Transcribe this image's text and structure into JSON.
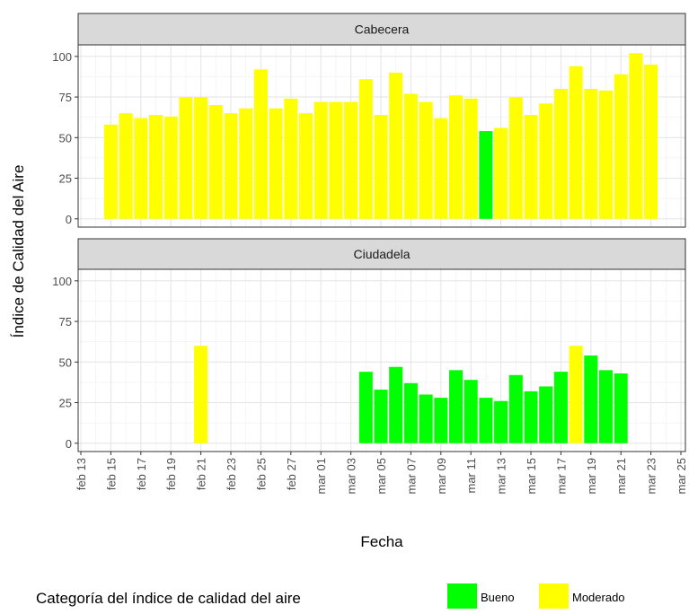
{
  "chart_data": {
    "type": "bar",
    "x_label": "Fecha",
    "y_label": "Índice de Calidad del Aire",
    "legend_title": "Categoría del índice de calidad del aire",
    "categories": [
      "feb 13",
      null,
      "feb 15",
      null,
      "feb 17",
      null,
      "feb 19",
      null,
      "feb 21",
      null,
      "feb 23",
      null,
      "feb 25",
      null,
      "feb 27",
      null,
      "mar 01",
      null,
      "mar 03",
      null,
      "mar 05",
      null,
      "mar 07",
      null,
      "mar 09",
      null,
      "mar 11",
      null,
      "mar 13",
      null,
      "mar 15",
      null,
      "mar 17",
      null,
      "mar 19",
      null,
      "mar 21",
      null,
      "mar 23",
      null,
      "mar 25"
    ],
    "ylim": [
      -5.1,
      107.1
    ],
    "yticks": [
      0,
      25,
      50,
      75,
      100
    ],
    "grid": true,
    "facets": [
      {
        "title": "Cabecera",
        "series": [
          {
            "name": "Bueno",
            "color": "#00ff00",
            "values": [
              null,
              null,
              null,
              null,
              null,
              null,
              null,
              null,
              null,
              null,
              null,
              null,
              null,
              null,
              null,
              null,
              null,
              null,
              null,
              null,
              null,
              null,
              null,
              null,
              null,
              null,
              null,
              54,
              null,
              null,
              null,
              null,
              null,
              null,
              null,
              null,
              null,
              null,
              null,
              null,
              null
            ]
          },
          {
            "name": "Moderado",
            "color": "#ffff00",
            "values": [
              null,
              null,
              58,
              65,
              62,
              64,
              63,
              75,
              75,
              70,
              65,
              68,
              92,
              68,
              74,
              65,
              72,
              72,
              72,
              86,
              64,
              90,
              77,
              72,
              62,
              76,
              74,
              null,
              56,
              75,
              64,
              71,
              80,
              94,
              80,
              79,
              89,
              102,
              95,
              null,
              null
            ]
          }
        ]
      },
      {
        "title": "Ciudadela",
        "series": [
          {
            "name": "Bueno",
            "color": "#00ff00",
            "values": [
              null,
              null,
              null,
              null,
              null,
              null,
              null,
              null,
              null,
              null,
              null,
              null,
              null,
              null,
              null,
              null,
              null,
              null,
              null,
              44,
              33,
              47,
              37,
              30,
              28,
              45,
              39,
              28,
              26,
              42,
              32,
              35,
              44,
              null,
              54,
              45,
              43,
              null,
              null,
              null,
              null
            ]
          },
          {
            "name": "Moderado",
            "color": "#ffff00",
            "values": [
              null,
              null,
              null,
              null,
              null,
              null,
              null,
              null,
              60,
              null,
              null,
              null,
              null,
              null,
              null,
              null,
              null,
              null,
              null,
              null,
              null,
              null,
              null,
              null,
              null,
              null,
              null,
              null,
              null,
              null,
              null,
              null,
              null,
              60,
              null,
              null,
              null,
              null,
              null,
              null,
              null
            ]
          }
        ]
      }
    ]
  }
}
